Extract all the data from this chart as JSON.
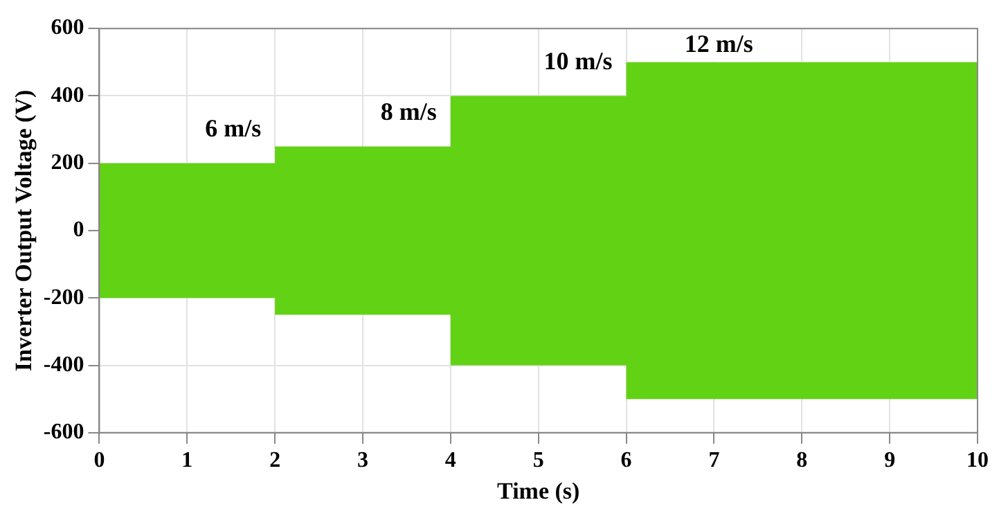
{
  "chart_data": {
    "type": "area",
    "xlabel": "Time (s)",
    "ylabel": "Inverter Output Voltage (V)",
    "x": [
      0,
      2,
      2,
      4,
      4,
      6,
      6,
      10
    ],
    "series": [
      {
        "color": "#62d314",
        "values": [
          200,
          200,
          250,
          250,
          400,
          400,
          500,
          500
        ]
      },
      {
        "color": "#62d314",
        "values": [
          -200,
          -200,
          -250,
          -250,
          -400,
          -400,
          -500,
          -500
        ]
      }
    ],
    "xlim": [
      0,
      10
    ],
    "xticks": [
      0,
      1,
      2,
      3,
      4,
      5,
      6,
      7,
      8,
      9,
      10
    ],
    "ylim": [
      -600,
      600
    ],
    "yticks": [
      -600,
      -400,
      -200,
      0,
      200,
      400,
      600
    ],
    "grid": true,
    "legend": false,
    "annotations": [
      "6 m/s",
      "8 m/s",
      "10 m/s",
      "12 m/s"
    ]
  }
}
